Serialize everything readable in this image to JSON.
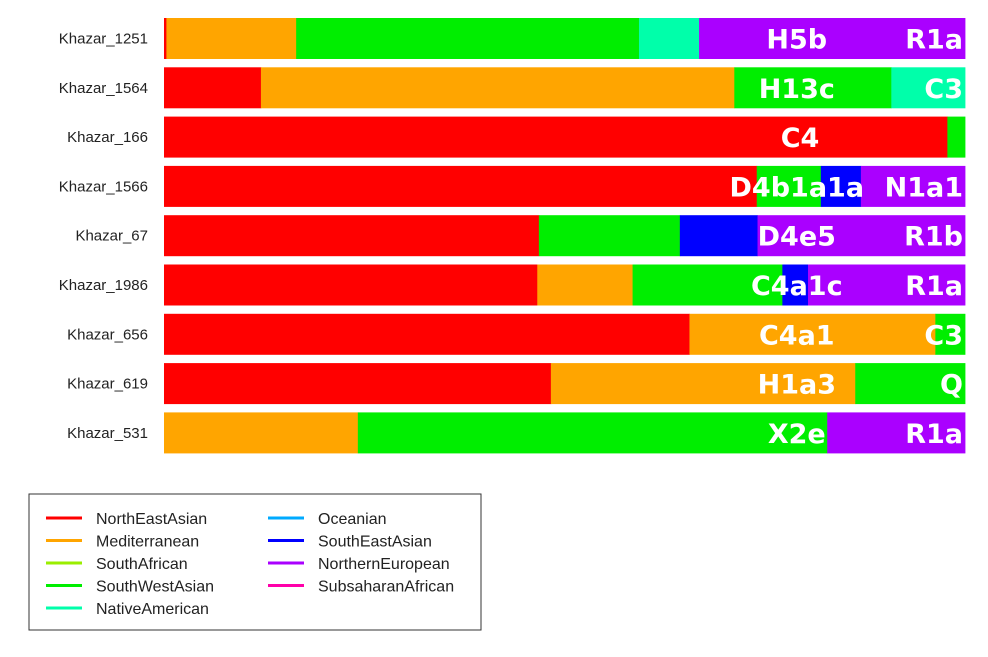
{
  "chart_data": {
    "type": "bar",
    "orientation": "horizontal",
    "stacked": true,
    "normalized": true,
    "components": [
      {
        "name": "NorthEastAsian",
        "color": "#ff0000"
      },
      {
        "name": "Mediterranean",
        "color": "#ffa500"
      },
      {
        "name": "SouthAfrican",
        "color": "#9aee00"
      },
      {
        "name": "SouthWestAsian",
        "color": "#00ee00"
      },
      {
        "name": "NativeAmerican",
        "color": "#00ffaa"
      },
      {
        "name": "Oceanian",
        "color": "#00aaff"
      },
      {
        "name": "SouthEastAsian",
        "color": "#0000ff"
      },
      {
        "name": "NorthernEuropean",
        "color": "#aa00ff"
      },
      {
        "name": "SubsaharanAfrican",
        "color": "#ff00aa"
      }
    ],
    "samples": [
      {
        "name": "Khazar_1251",
        "mt": "H5b",
        "y": "R1a",
        "values": [
          0.003,
          0.162,
          0,
          0.428,
          0.075,
          0,
          0,
          0.332,
          0
        ]
      },
      {
        "name": "Khazar_1564",
        "mt": "H13c",
        "y": "C3",
        "values": [
          0.121,
          0.591,
          0,
          0.196,
          0.092,
          0,
          0,
          0,
          0
        ]
      },
      {
        "name": "Khazar_166",
        "mt": "C4",
        "y": "",
        "values": [
          0.978,
          0,
          0,
          0.022,
          0,
          0,
          0,
          0,
          0
        ]
      },
      {
        "name": "Khazar_1566",
        "mt": "D4b1a1a",
        "y": "N1a1",
        "values": [
          0.74,
          0,
          0,
          0.08,
          0,
          0,
          0.05,
          0.13,
          0
        ]
      },
      {
        "name": "Khazar_67",
        "mt": "D4e5",
        "y": "R1b",
        "values": [
          0.468,
          0,
          0,
          0.176,
          0,
          0,
          0.097,
          0.259,
          0
        ]
      },
      {
        "name": "Khazar_1986",
        "mt": "C4a1c",
        "y": "R1a",
        "values": [
          0.466,
          0.119,
          0,
          0.187,
          0,
          0,
          0.032,
          0.196,
          0
        ]
      },
      {
        "name": "Khazar_656",
        "mt": "C4a1",
        "y": "C3",
        "values": [
          0.656,
          0.307,
          0,
          0.037,
          0,
          0,
          0,
          0,
          0
        ]
      },
      {
        "name": "Khazar_619",
        "mt": "H1a3",
        "y": "Q",
        "values": [
          0.483,
          0.38,
          0,
          0.137,
          0,
          0,
          0,
          0,
          0
        ]
      },
      {
        "name": "Khazar_531",
        "mt": "X2e",
        "y": "R1a",
        "values": [
          0,
          0.242,
          0,
          0.586,
          0,
          0,
          0,
          0.172,
          0
        ]
      }
    ],
    "legend": {
      "position": "bottom-left",
      "columns": [
        [
          "NorthEastAsian",
          "Mediterranean",
          "SouthAfrican",
          "SouthWestAsian",
          "NativeAmerican"
        ],
        [
          "Oceanian",
          "SouthEastAsian",
          "NorthernEuropean",
          "SubsaharanAfrican"
        ]
      ]
    },
    "grid": false
  }
}
